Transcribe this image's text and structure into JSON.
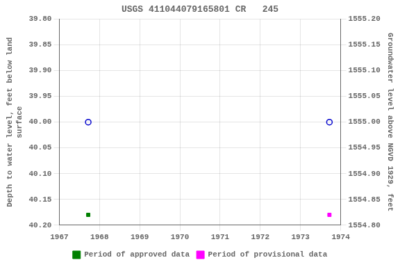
{
  "chart_data": {
    "type": "scatter",
    "title": "USGS 411044079165801 CR   245",
    "y_label": "Depth to water level, feet below land\nsurface",
    "y2_label": "Groundwater level above NGVD 1929, feet",
    "xlim": [
      1967,
      1974
    ],
    "xticks": [
      1967,
      1968,
      1969,
      1970,
      1971,
      1972,
      1973,
      1974
    ],
    "ylim": [
      40.2,
      39.8
    ],
    "yticks": [
      {
        "value": 39.8,
        "label": "39.80"
      },
      39.85,
      {
        "value": 39.9,
        "label": "39.90"
      },
      39.95,
      {
        "value": 40.0,
        "label": "40.00"
      },
      40.05,
      {
        "value": 40.1,
        "label": "40.10"
      },
      40.15,
      {
        "value": 40.2,
        "label": "40.20"
      }
    ],
    "y2lim": [
      1554.8,
      1555.2
    ],
    "y2ticks": [
      {
        "value": 1555.2,
        "label": "1555.20"
      },
      1555.15,
      {
        "value": 1555.1,
        "label": "1555.10"
      },
      1555.05,
      {
        "value": 1555.0,
        "label": "1555.00"
      },
      1554.95,
      {
        "value": 1554.9,
        "label": "1554.90"
      },
      1554.85,
      {
        "value": 1554.8,
        "label": "1554.80"
      }
    ],
    "grid": true,
    "legend": "bottom",
    "series": [
      {
        "color": "#0000cc",
        "marker": "open_circle",
        "x": [
          1967.72,
          1973.72
        ],
        "values": [
          40.0,
          40.0
        ]
      },
      {
        "name": "Period of approved data",
        "color": "#008000",
        "marker": "square",
        "x": [
          1967.72
        ],
        "values": [
          40.18
        ]
      },
      {
        "name": "Period of provisional data",
        "color": "#ff00ff",
        "marker": "square",
        "x": [
          1973.72
        ],
        "values": [
          40.18
        ]
      }
    ]
  }
}
